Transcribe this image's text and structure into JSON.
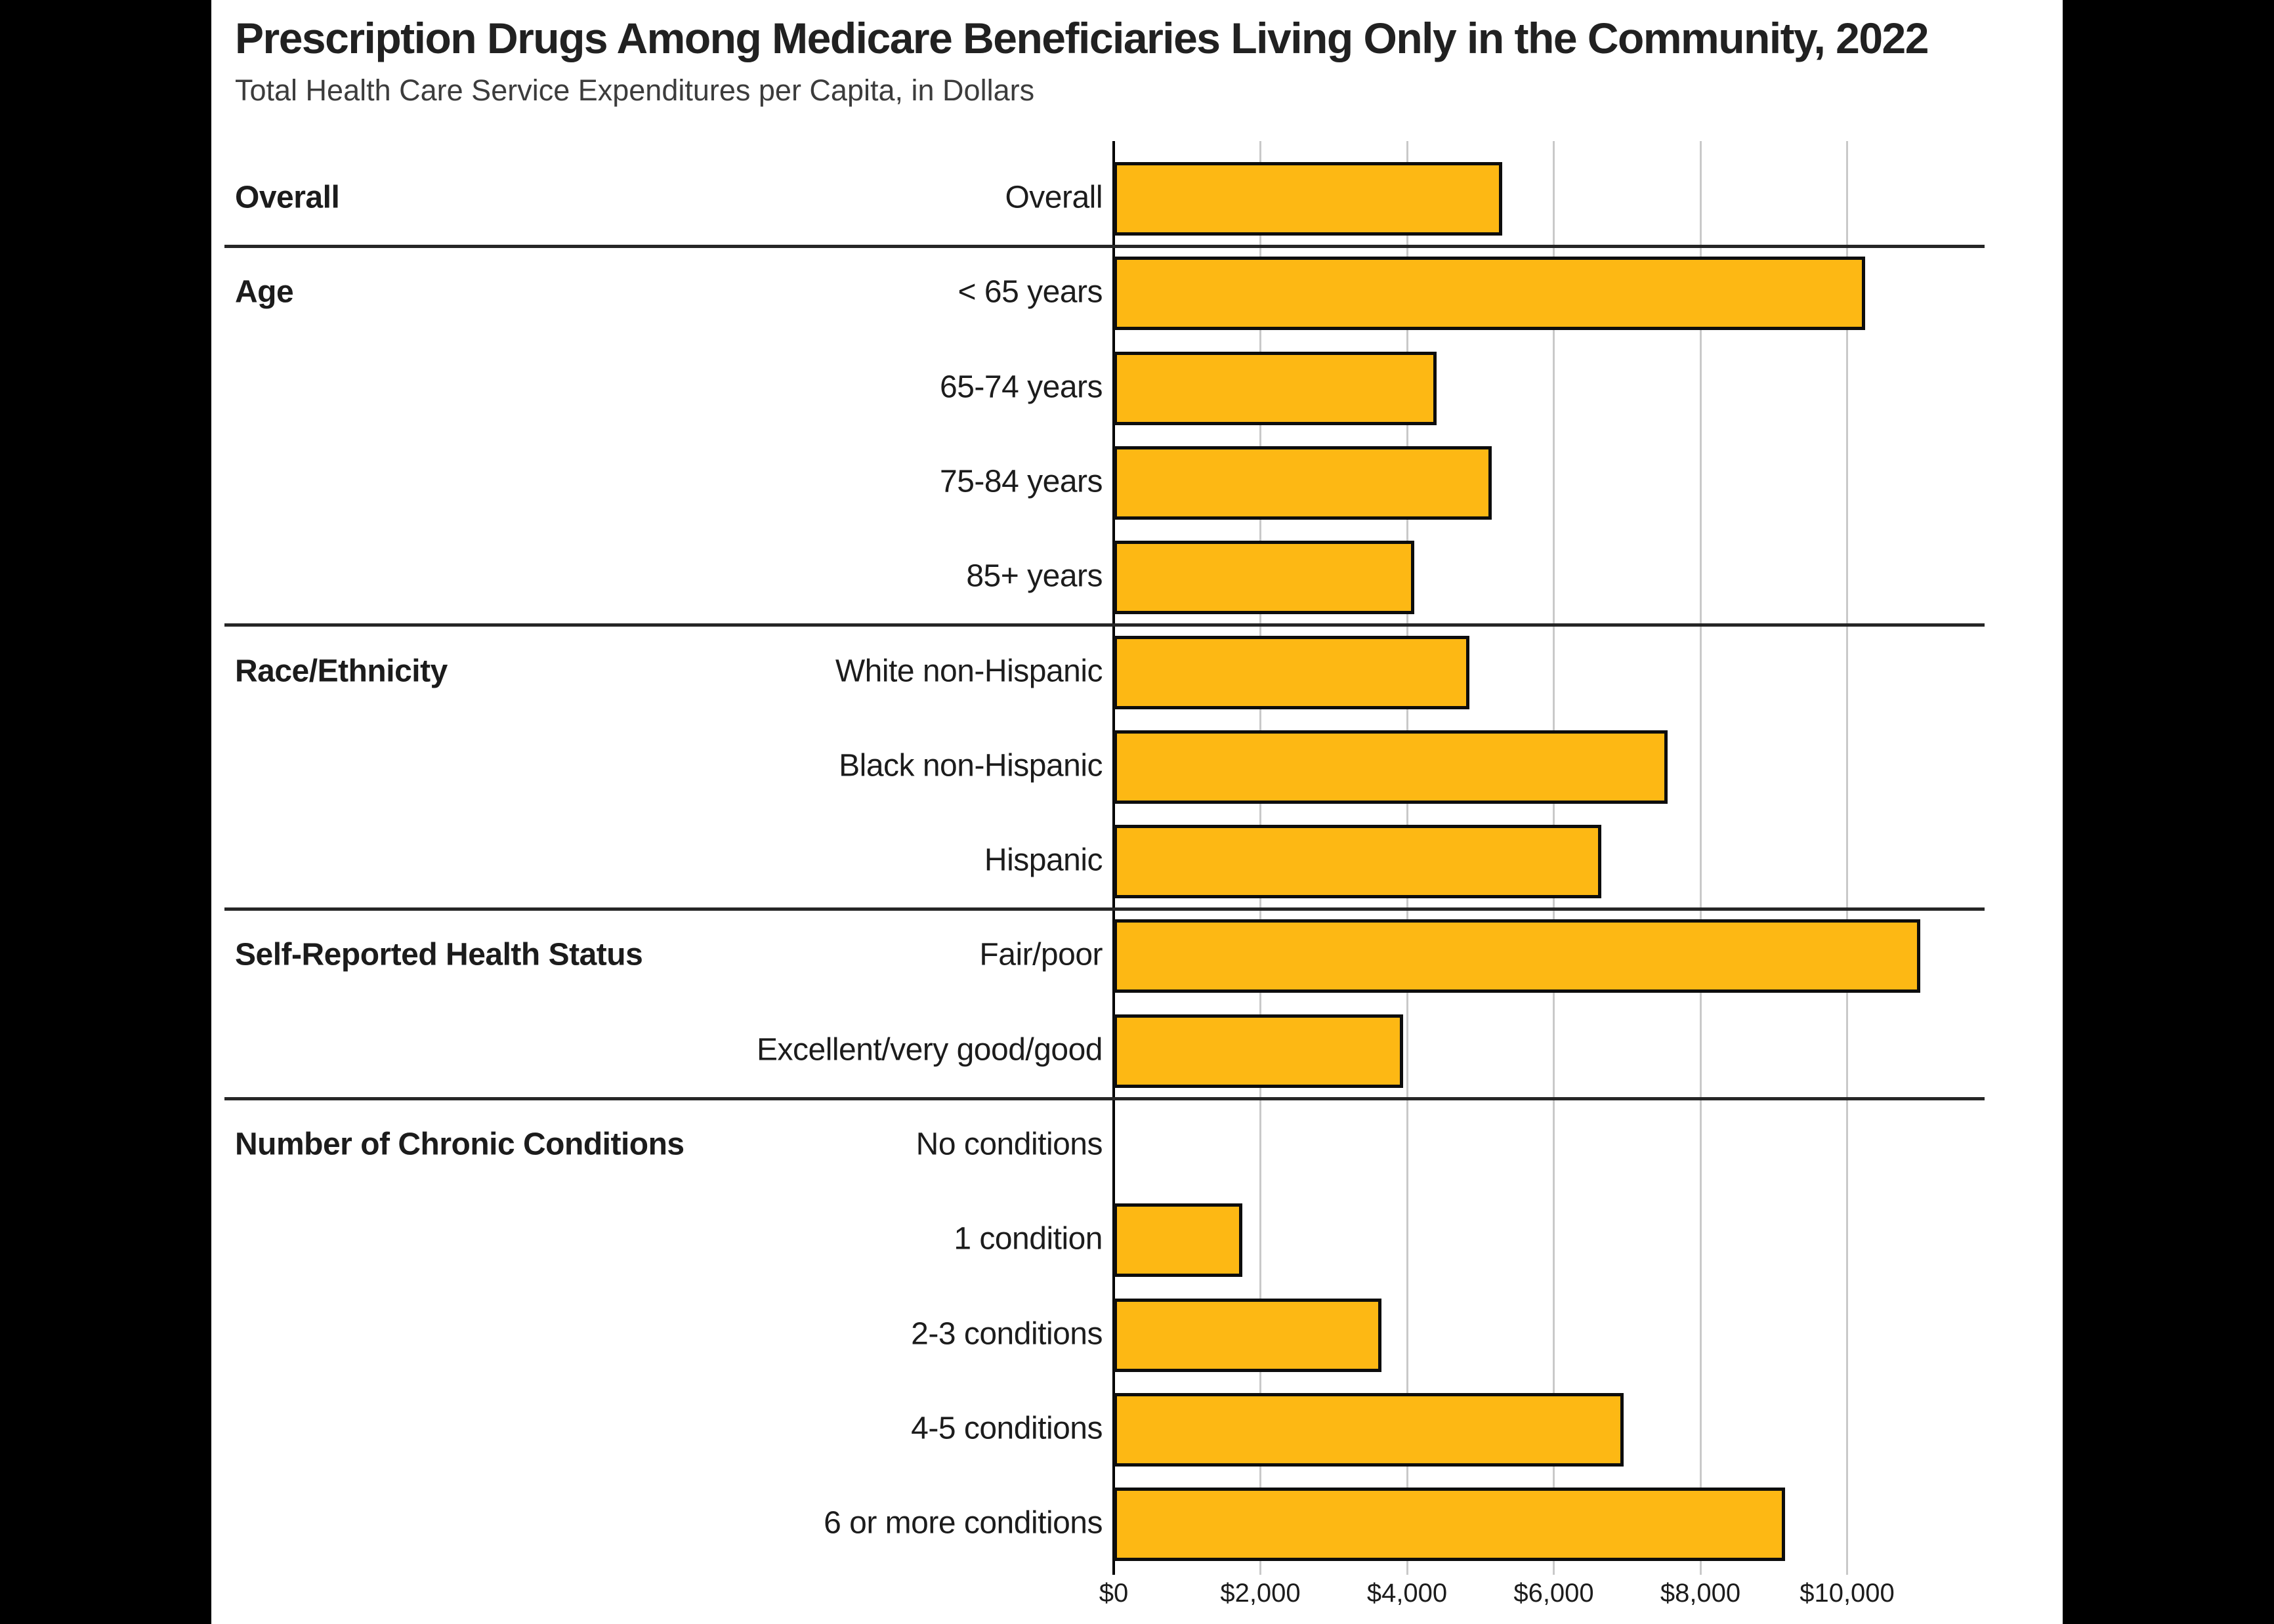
{
  "page": {
    "letterbox_color": "#000000",
    "canvas_color": "#ffffff"
  },
  "header": {
    "title": "Prescription Drugs Among Medicare Beneficiaries Living Only in the Community, 2022",
    "subtitle": "Total Health Care Service Expenditures per Capita, in Dollars"
  },
  "chart_data": {
    "type": "bar",
    "orientation": "horizontal",
    "title": "Prescription Drugs Among Medicare Beneficiaries Living Only in the Community, 2022",
    "subtitle": "Total Health Care Service Expenditures per Capita, in Dollars",
    "xlabel": "Total Health Care Service Expenditures per Capita, in Dollars",
    "ylabel": "",
    "grid": true,
    "legend": false,
    "x_axis": {
      "min": 0,
      "max": 11200,
      "tick_step": 2000,
      "tick_values": [
        0,
        2000,
        4000,
        6000,
        8000,
        10000
      ],
      "tick_labels": [
        "$0",
        "$2,000",
        "$4,000",
        "$6,000",
        "$8,000",
        "$10,000"
      ]
    },
    "groups": [
      {
        "label": "Overall",
        "rows": [
          {
            "label": "Overall",
            "value": 5300
          }
        ]
      },
      {
        "label": "Age",
        "rows": [
          {
            "label": "< 65 years",
            "value": 10250
          },
          {
            "label": "65-74 years",
            "value": 4400
          },
          {
            "label": "75-84 years",
            "value": 5150
          },
          {
            "label": "85+ years",
            "value": 4100
          }
        ]
      },
      {
        "label": "Race/Ethnicity",
        "rows": [
          {
            "label": "White non-Hispanic",
            "value": 4850
          },
          {
            "label": "Black non-Hispanic",
            "value": 7550
          },
          {
            "label": "Hispanic",
            "value": 6650
          }
        ]
      },
      {
        "label": "Self-Reported Health Status",
        "rows": [
          {
            "label": "Fair/poor",
            "value": 11000
          },
          {
            "label": "Excellent/very good/good",
            "value": 3950
          }
        ]
      },
      {
        "label": "Number of Chronic Conditions",
        "rows": [
          {
            "label": "No conditions",
            "value": 0
          },
          {
            "label": "1 condition",
            "value": 1750
          },
          {
            "label": "2-3 conditions",
            "value": 3650
          },
          {
            "label": "4-5 conditions",
            "value": 6950
          },
          {
            "label": "6 or more conditions",
            "value": 9150
          }
        ]
      }
    ],
    "colors": {
      "bar_fill": "#FDB814",
      "bar_border": "#0d0d0d",
      "gridline": "#c9c9c9",
      "axis_line": "#000000",
      "divider": "#262626",
      "title": "#212121",
      "subtitle": "#3c3c3c",
      "label": "#1c1c1c",
      "tick_label": "#1c1c1c",
      "canvas": "#ffffff",
      "letterbox": "#000000"
    }
  }
}
